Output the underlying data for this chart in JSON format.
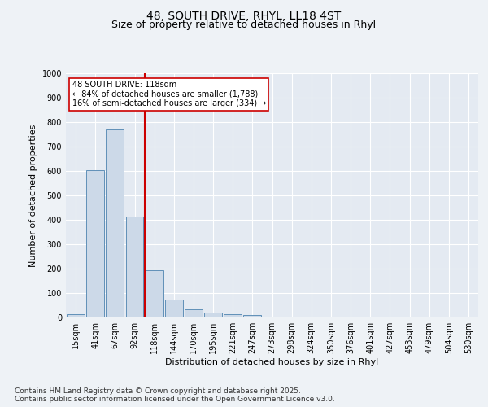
{
  "title": "48, SOUTH DRIVE, RHYL, LL18 4ST",
  "subtitle": "Size of property relative to detached houses in Rhyl",
  "xlabel": "Distribution of detached houses by size in Rhyl",
  "ylabel": "Number of detached properties",
  "categories": [
    "15sqm",
    "41sqm",
    "67sqm",
    "92sqm",
    "118sqm",
    "144sqm",
    "170sqm",
    "195sqm",
    "221sqm",
    "247sqm",
    "273sqm",
    "298sqm",
    "324sqm",
    "350sqm",
    "376sqm",
    "401sqm",
    "427sqm",
    "453sqm",
    "479sqm",
    "504sqm",
    "530sqm"
  ],
  "values": [
    15,
    605,
    770,
    415,
    195,
    75,
    35,
    20,
    15,
    10,
    0,
    0,
    0,
    0,
    0,
    0,
    0,
    0,
    0,
    0,
    0
  ],
  "bar_color": "#ccd9e8",
  "bar_edge_color": "#6090b8",
  "red_line_index": 4,
  "red_line_color": "#cc0000",
  "annotation_text": "48 SOUTH DRIVE: 118sqm\n← 84% of detached houses are smaller (1,788)\n16% of semi-detached houses are larger (334) →",
  "annotation_box_color": "#ffffff",
  "annotation_box_edge": "#cc0000",
  "ylim": [
    0,
    1000
  ],
  "yticks": [
    0,
    100,
    200,
    300,
    400,
    500,
    600,
    700,
    800,
    900,
    1000
  ],
  "background_color": "#eef2f6",
  "plot_bg_color": "#e4eaf2",
  "grid_color": "#ffffff",
  "footer": "Contains HM Land Registry data © Crown copyright and database right 2025.\nContains public sector information licensed under the Open Government Licence v3.0.",
  "title_fontsize": 10,
  "subtitle_fontsize": 9,
  "axis_label_fontsize": 8,
  "tick_fontsize": 7,
  "footer_fontsize": 6.5
}
